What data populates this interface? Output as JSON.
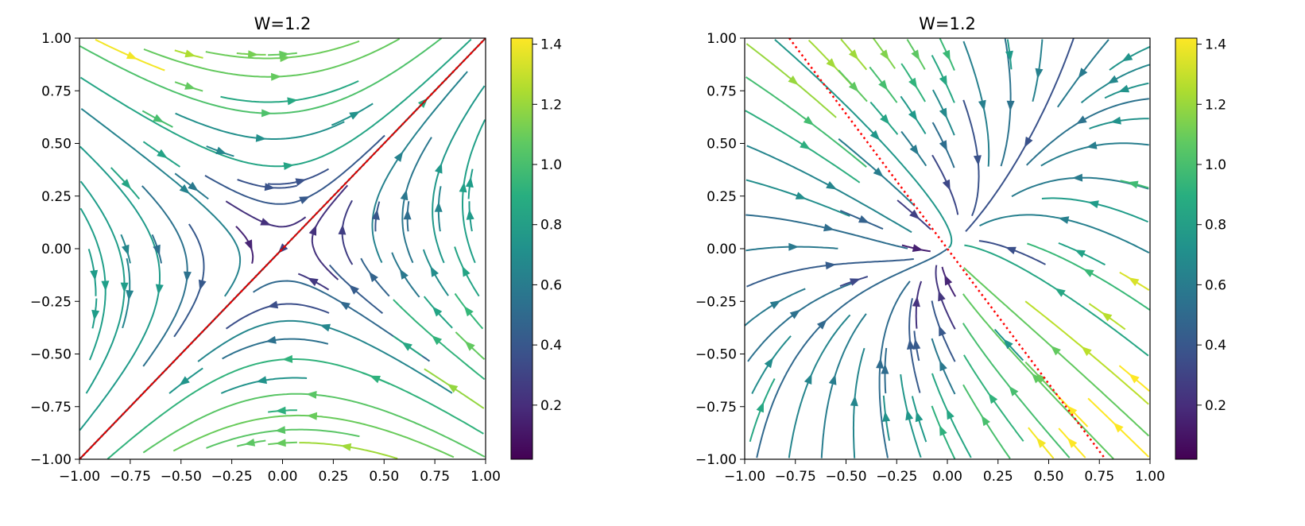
{
  "chart_data": [
    {
      "type": "streamplot",
      "title": "W=1.2",
      "xlabel": "",
      "ylabel": "",
      "xlim": [
        -1.0,
        1.0
      ],
      "ylim": [
        -1.0,
        1.0
      ],
      "x_ticks": [
        -1.0,
        -0.75,
        -0.5,
        -0.25,
        0.0,
        0.25,
        0.5,
        0.75,
        1.0
      ],
      "x_tick_labels": [
        "−1.00",
        "−0.75",
        "−0.50",
        "−0.25",
        "0.00",
        "0.25",
        "0.50",
        "0.75",
        "1.00"
      ],
      "y_ticks": [
        1.0,
        0.75,
        0.5,
        0.25,
        0.0,
        -0.25,
        -0.5,
        -0.75,
        -1.0
      ],
      "y_tick_labels": [
        "1.00",
        "0.75",
        "0.50",
        "0.25",
        "0.00",
        "−0.25",
        "−0.50",
        "−0.75",
        "−1.00"
      ],
      "colormap": "viridis",
      "colorbar": {
        "min": 0.02,
        "max": 1.42,
        "ticks": [
          0.2,
          0.4,
          0.6,
          0.8,
          1.0,
          1.2,
          1.4
        ],
        "tick_labels": [
          "0.2",
          "0.4",
          "0.6",
          "0.8",
          "1.0",
          "1.2",
          "1.4"
        ]
      },
      "field": "saddle",
      "reference_line": {
        "points": [
          [
            -1.0,
            -1.0
          ],
          [
            1.0,
            1.0
          ]
        ],
        "colors": [
          "#8b1a1a",
          "#ff0000"
        ],
        "style": "dotted"
      },
      "grid": false
    },
    {
      "type": "streamplot",
      "title": "W=1.2",
      "xlabel": "",
      "ylabel": "",
      "xlim": [
        -1.0,
        1.0
      ],
      "ylim": [
        -1.0,
        1.0
      ],
      "x_ticks": [
        -1.0,
        -0.75,
        -0.5,
        -0.25,
        0.0,
        0.25,
        0.5,
        0.75,
        1.0
      ],
      "x_tick_labels": [
        "−1.00",
        "−0.75",
        "−0.50",
        "−0.25",
        "0.00",
        "0.25",
        "0.50",
        "0.75",
        "1.00"
      ],
      "y_ticks": [
        1.0,
        0.75,
        0.5,
        0.25,
        0.0,
        -0.25,
        -0.5,
        -0.75,
        -1.0
      ],
      "y_tick_labels": [
        "1.00",
        "0.75",
        "0.50",
        "0.25",
        "0.00",
        "−0.25",
        "−0.50",
        "−0.75",
        "−1.00"
      ],
      "colormap": "viridis",
      "colorbar": {
        "min": 0.02,
        "max": 1.42,
        "ticks": [
          0.2,
          0.4,
          0.6,
          0.8,
          1.0,
          1.2,
          1.4
        ],
        "tick_labels": [
          "0.2",
          "0.4",
          "0.6",
          "0.8",
          "1.0",
          "1.2",
          "1.4"
        ]
      },
      "field": "attractor",
      "reference_line": {
        "points": [
          [
            -0.78,
            1.0
          ],
          [
            0.78,
            -1.0
          ]
        ],
        "colors": [
          "#ff0000"
        ],
        "style": "dotted"
      },
      "grid": false
    }
  ]
}
